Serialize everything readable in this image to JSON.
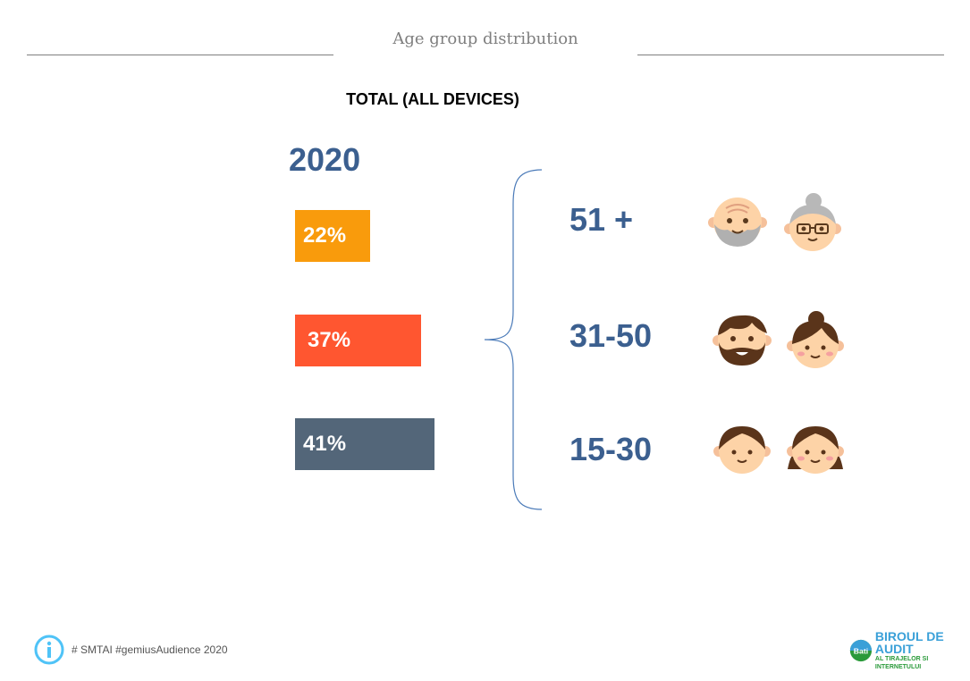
{
  "header": {
    "title": "Age group distribution",
    "subtitle": "TOTAL (ALL DEVICES)"
  },
  "year": "2020",
  "bars": [
    {
      "label": "22%",
      "value": 22,
      "color": "#F99B0C",
      "age_group": "51 +"
    },
    {
      "label": "37%",
      "value": 37,
      "color": "#FF5630",
      "age_group": "31-50"
    },
    {
      "label": "41%",
      "value": 41,
      "color": "#536679",
      "age_group": "15-30"
    }
  ],
  "icons": [
    "elderly-man-icon",
    "elderly-woman-icon",
    "bearded-man-icon",
    "woman-icon",
    "boy-icon",
    "girl-icon"
  ],
  "footer": {
    "text": "# SMTAI #gemiusAudience 2020"
  },
  "logo": {
    "mark": "BATI",
    "line1": "BIROUL DE AUDIT",
    "line2": "AL TIRAJELOR SI INTERNETULUI"
  },
  "accent": "#3B5F8F"
}
